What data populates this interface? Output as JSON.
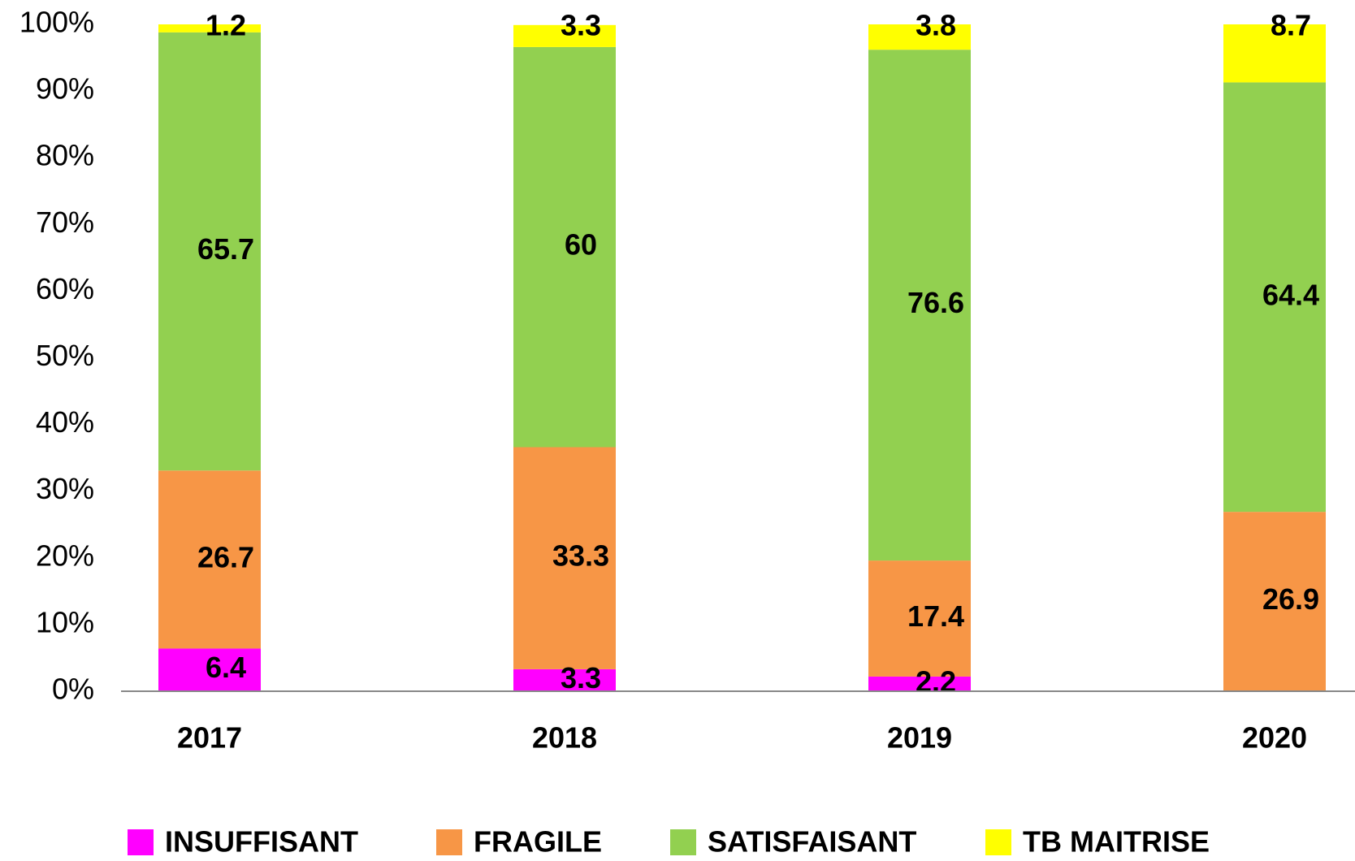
{
  "chart_data": {
    "type": "bar",
    "stacked": true,
    "categories": [
      "2017",
      "2018",
      "2019",
      "2020"
    ],
    "series": [
      {
        "name": "INSUFFISANT",
        "color": "#ff00ff",
        "values": [
          6.4,
          3.3,
          2.2,
          null
        ]
      },
      {
        "name": "FRAGILE",
        "color": "#f79646",
        "values": [
          26.7,
          33.3,
          17.4,
          26.9
        ]
      },
      {
        "name": "SATISFAISANT",
        "color": "#92d050",
        "values": [
          65.7,
          60,
          76.6,
          64.4
        ]
      },
      {
        "name": "TB MAITRISE",
        "color": "#ffff00",
        "values": [
          1.2,
          3.3,
          3.8,
          8.7
        ]
      }
    ],
    "ylim": [
      0,
      100
    ],
    "yticks": [
      {
        "value": 0,
        "label": "0%"
      },
      {
        "value": 10,
        "label": "10%"
      },
      {
        "value": 20,
        "label": "20%"
      },
      {
        "value": 30,
        "label": "30%"
      },
      {
        "value": 40,
        "label": "40%"
      },
      {
        "value": 50,
        "label": "50%"
      },
      {
        "value": 60,
        "label": "60%"
      },
      {
        "value": 70,
        "label": "70%"
      },
      {
        "value": 80,
        "label": "80%"
      },
      {
        "value": 90,
        "label": "90%"
      },
      {
        "value": 100,
        "label": "100%"
      }
    ],
    "legend": "bottom"
  }
}
